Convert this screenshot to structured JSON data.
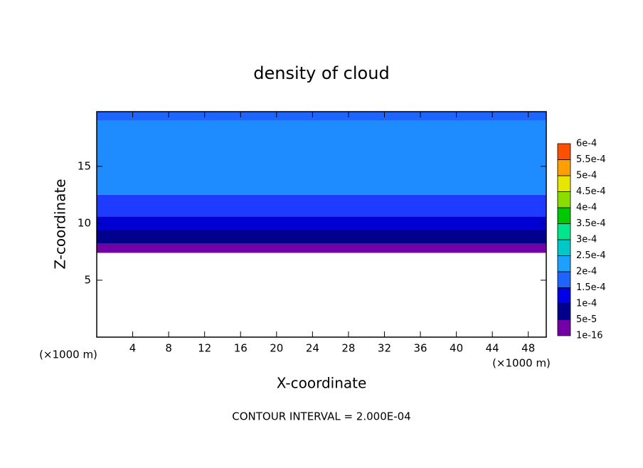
{
  "chart_data": {
    "type": "contour",
    "title": "density of cloud",
    "x_label": "X-coordinate",
    "y_label": "Z-coordinate",
    "x_unit_left": "(×1000 m)",
    "x_unit_right": "(×1000 m)",
    "footnote": "CONTOUR INTERVAL = 2.000E-04",
    "xlim": [
      0,
      50
    ],
    "ylim": [
      0,
      19.8
    ],
    "xticks": [
      4,
      8,
      12,
      16,
      20,
      24,
      28,
      32,
      36,
      40,
      44,
      48
    ],
    "yticks": [
      5,
      10,
      15
    ],
    "cloud_layers": [
      {
        "zlim": [
          7.4,
          8.2
        ],
        "color": "#7300a6"
      },
      {
        "zlim": [
          8.2,
          9.4
        ],
        "color": "#00008c"
      },
      {
        "zlim": [
          9.4,
          10.6
        ],
        "color": "#0000d2"
      },
      {
        "zlim": [
          10.6,
          12.5
        ],
        "color": "#1e3cff"
      },
      {
        "zlim": [
          12.5,
          19.0
        ],
        "color": "#1e8cff"
      },
      {
        "zlim": [
          19.0,
          19.8
        ],
        "color": "#1e64ff"
      }
    ],
    "colorbar": {
      "levels": [
        {
          "value": 1e-16,
          "label": "1e-16"
        },
        {
          "value": 5e-05,
          "label": "5e-5"
        },
        {
          "value": 0.0001,
          "label": "1e-4"
        },
        {
          "value": 0.00015,
          "label": "1.5e-4"
        },
        {
          "value": 0.0002,
          "label": "2e-4"
        },
        {
          "value": 0.00025,
          "label": "2.5e-4"
        },
        {
          "value": 0.0003,
          "label": "3e-4"
        },
        {
          "value": 0.00035,
          "label": "3.5e-4"
        },
        {
          "value": 0.0004,
          "label": "4e-4"
        },
        {
          "value": 0.00045,
          "label": "4.5e-4"
        },
        {
          "value": 0.0005,
          "label": "5e-4"
        },
        {
          "value": 0.00055,
          "label": "5.5e-4"
        },
        {
          "value": 0.0006,
          "label": "6e-4"
        }
      ],
      "colors": [
        "#7300a6",
        "#00008c",
        "#0000e6",
        "#1e64ff",
        "#1ea0ff",
        "#00c8c8",
        "#00e68c",
        "#00c800",
        "#8cdc00",
        "#e6e600",
        "#ffa000",
        "#ff5000",
        "#ff1e00",
        "#ff8c8c"
      ]
    }
  }
}
